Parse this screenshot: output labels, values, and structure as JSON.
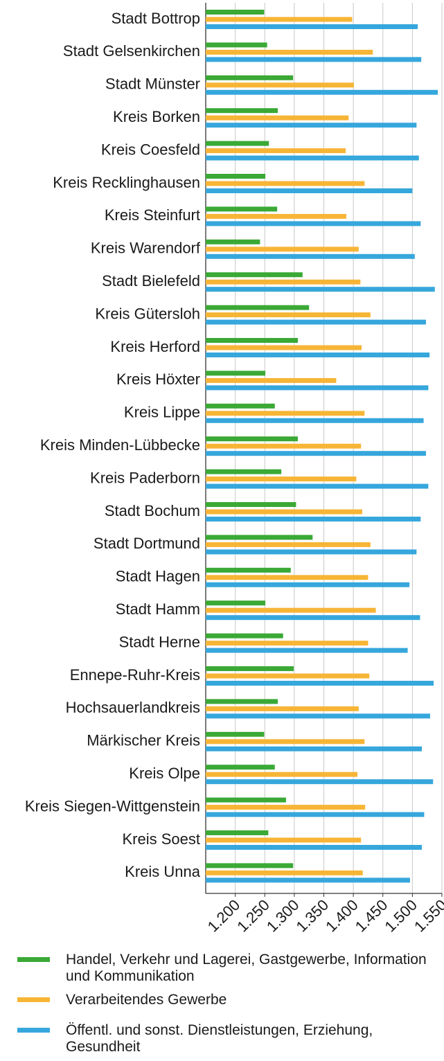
{
  "chart_data": {
    "type": "bar",
    "orientation": "horizontal",
    "categories": [
      "Stadt Bottrop",
      "Stadt Gelsenkirchen",
      "Stadt Münster",
      "Kreis Borken",
      "Kreis Coesfeld",
      "Kreis Recklinghausen",
      "Kreis Steinfurt",
      "Kreis Warendorf",
      "Stadt Bielefeld",
      "Kreis Gütersloh",
      "Kreis Herford",
      "Kreis Höxter",
      "Kreis Lippe",
      "Kreis Minden-Lübbecke",
      "Kreis Paderborn",
      "Stadt Bochum",
      "Stadt Dortmund",
      "Stadt Hagen",
      "Stadt Hamm",
      "Stadt Herne",
      "Ennepe-Ruhr-Kreis",
      "Hochsauerlandkreis",
      "Märkischer Kreis",
      "Kreis Olpe",
      "Kreis Siegen-Wittgenstein",
      "Kreis Soest",
      "Kreis Unna"
    ],
    "series": [
      {
        "name": "Handel, Verkehr und Lagerei, Gastgewerbe, Information und Kommunikation",
        "color": "#3aa935",
        "values": [
          1249,
          1254,
          1298,
          1272,
          1257,
          1251,
          1271,
          1242,
          1314,
          1325,
          1306,
          1251,
          1267,
          1306,
          1278,
          1303,
          1331,
          1294,
          1251,
          1281,
          1299,
          1272,
          1249,
          1267,
          1286,
          1256,
          1298
        ]
      },
      {
        "name": "Verarbeitendes Gewerbe",
        "color": "#f7b536",
        "values": [
          1398,
          1433,
          1401,
          1392,
          1387,
          1419,
          1388,
          1409,
          1412,
          1429,
          1414,
          1371,
          1419,
          1413,
          1405,
          1415,
          1429,
          1425,
          1438,
          1425,
          1427,
          1409,
          1419,
          1407,
          1420,
          1413,
          1416
        ]
      },
      {
        "name": "Öffentl. und sonst. Dienstleistungen, Erziehung, Gesundheit",
        "color": "#36a7dc",
        "values": [
          1509,
          1515,
          1543,
          1507,
          1511,
          1500,
          1514,
          1504,
          1538,
          1523,
          1529,
          1527,
          1519,
          1523,
          1527,
          1514,
          1507,
          1495,
          1513,
          1492,
          1536,
          1530,
          1516,
          1535,
          1520,
          1516,
          1496
        ]
      }
    ],
    "xlim": [
      1150,
      1550
    ],
    "xticks": [
      {
        "value": 1200,
        "label": "1.200"
      },
      {
        "value": 1250,
        "label": "1.250"
      },
      {
        "value": 1300,
        "label": "1.300"
      },
      {
        "value": 1350,
        "label": "1.350"
      },
      {
        "value": 1400,
        "label": "1.400"
      },
      {
        "value": 1450,
        "label": "1.450"
      },
      {
        "value": 1500,
        "label": "1.500"
      },
      {
        "value": 1550,
        "label": "1.550"
      }
    ],
    "grid": true,
    "legend": "bottom"
  }
}
